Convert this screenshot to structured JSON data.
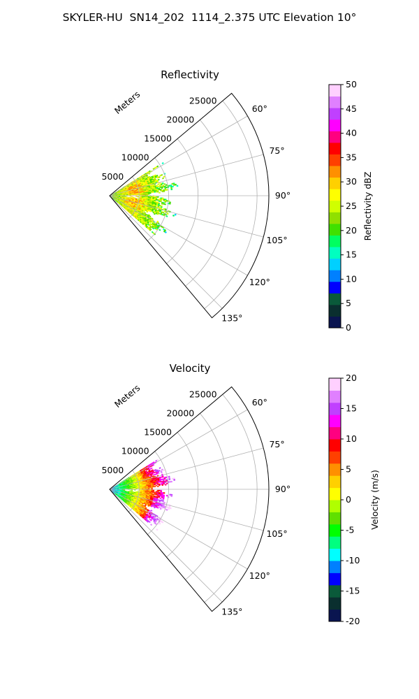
{
  "figure": {
    "title": "SKYLER-HU  SN14_202  1114_2.375 UTC Elevation 10°"
  },
  "colors": {
    "reflectivity_scale": [
      "#0a1550",
      "#0a2f2f",
      "#0a5a3a",
      "#0000ff",
      "#0080ff",
      "#00d0ff",
      "#00ffc0",
      "#00ff60",
      "#40e000",
      "#90e000",
      "#d0ff00",
      "#ffff00",
      "#ffd000",
      "#ff9000",
      "#ff4000",
      "#ff0000",
      "#ff0080",
      "#ff00ff",
      "#c040ff",
      "#e080ff",
      "#ffd0ff"
    ],
    "velocity_scale": [
      "#0a1550",
      "#0a2f2f",
      "#0a5a3a",
      "#0000ff",
      "#0080ff",
      "#00ffff",
      "#00ff80",
      "#00ff00",
      "#60e000",
      "#b0ff00",
      "#ffff00",
      "#ffd000",
      "#ff9000",
      "#ff4000",
      "#ff0000",
      "#ff0080",
      "#ff00ff",
      "#c040ff",
      "#e080ff",
      "#ffd0ff"
    ],
    "grid": "#b0b0b0"
  },
  "chart_data": [
    {
      "type": "heatmap",
      "projection": "polar-sector",
      "title": "Reflectivity",
      "range_label": "Meters",
      "range_ticks": [
        5000,
        10000,
        15000,
        20000,
        25000
      ],
      "range_max": 27000,
      "azimuth_ticks": [
        "60°",
        "75°",
        "90°",
        "105°",
        "120°",
        "135°"
      ],
      "azimuth_range": [
        50,
        140
      ],
      "data_extent_m": 12000,
      "colorbar": {
        "label": "Reflectivity dBZ",
        "min": 0,
        "max": 50,
        "ticks": [
          0,
          5,
          10,
          15,
          20,
          25,
          30,
          35,
          40,
          45,
          50
        ]
      }
    },
    {
      "type": "heatmap",
      "projection": "polar-sector",
      "title": "Velocity",
      "range_label": "Meters",
      "range_ticks": [
        5000,
        10000,
        15000,
        20000,
        25000
      ],
      "range_max": 27000,
      "azimuth_ticks": [
        "60°",
        "75°",
        "90°",
        "105°",
        "120°",
        "135°"
      ],
      "azimuth_range": [
        50,
        140
      ],
      "data_extent_m": 12000,
      "colorbar": {
        "label": "Velocity (m/s)",
        "min": -20,
        "max": 20,
        "ticks": [
          -20,
          -15,
          -10,
          -5,
          0,
          5,
          10,
          15,
          20
        ]
      }
    }
  ]
}
